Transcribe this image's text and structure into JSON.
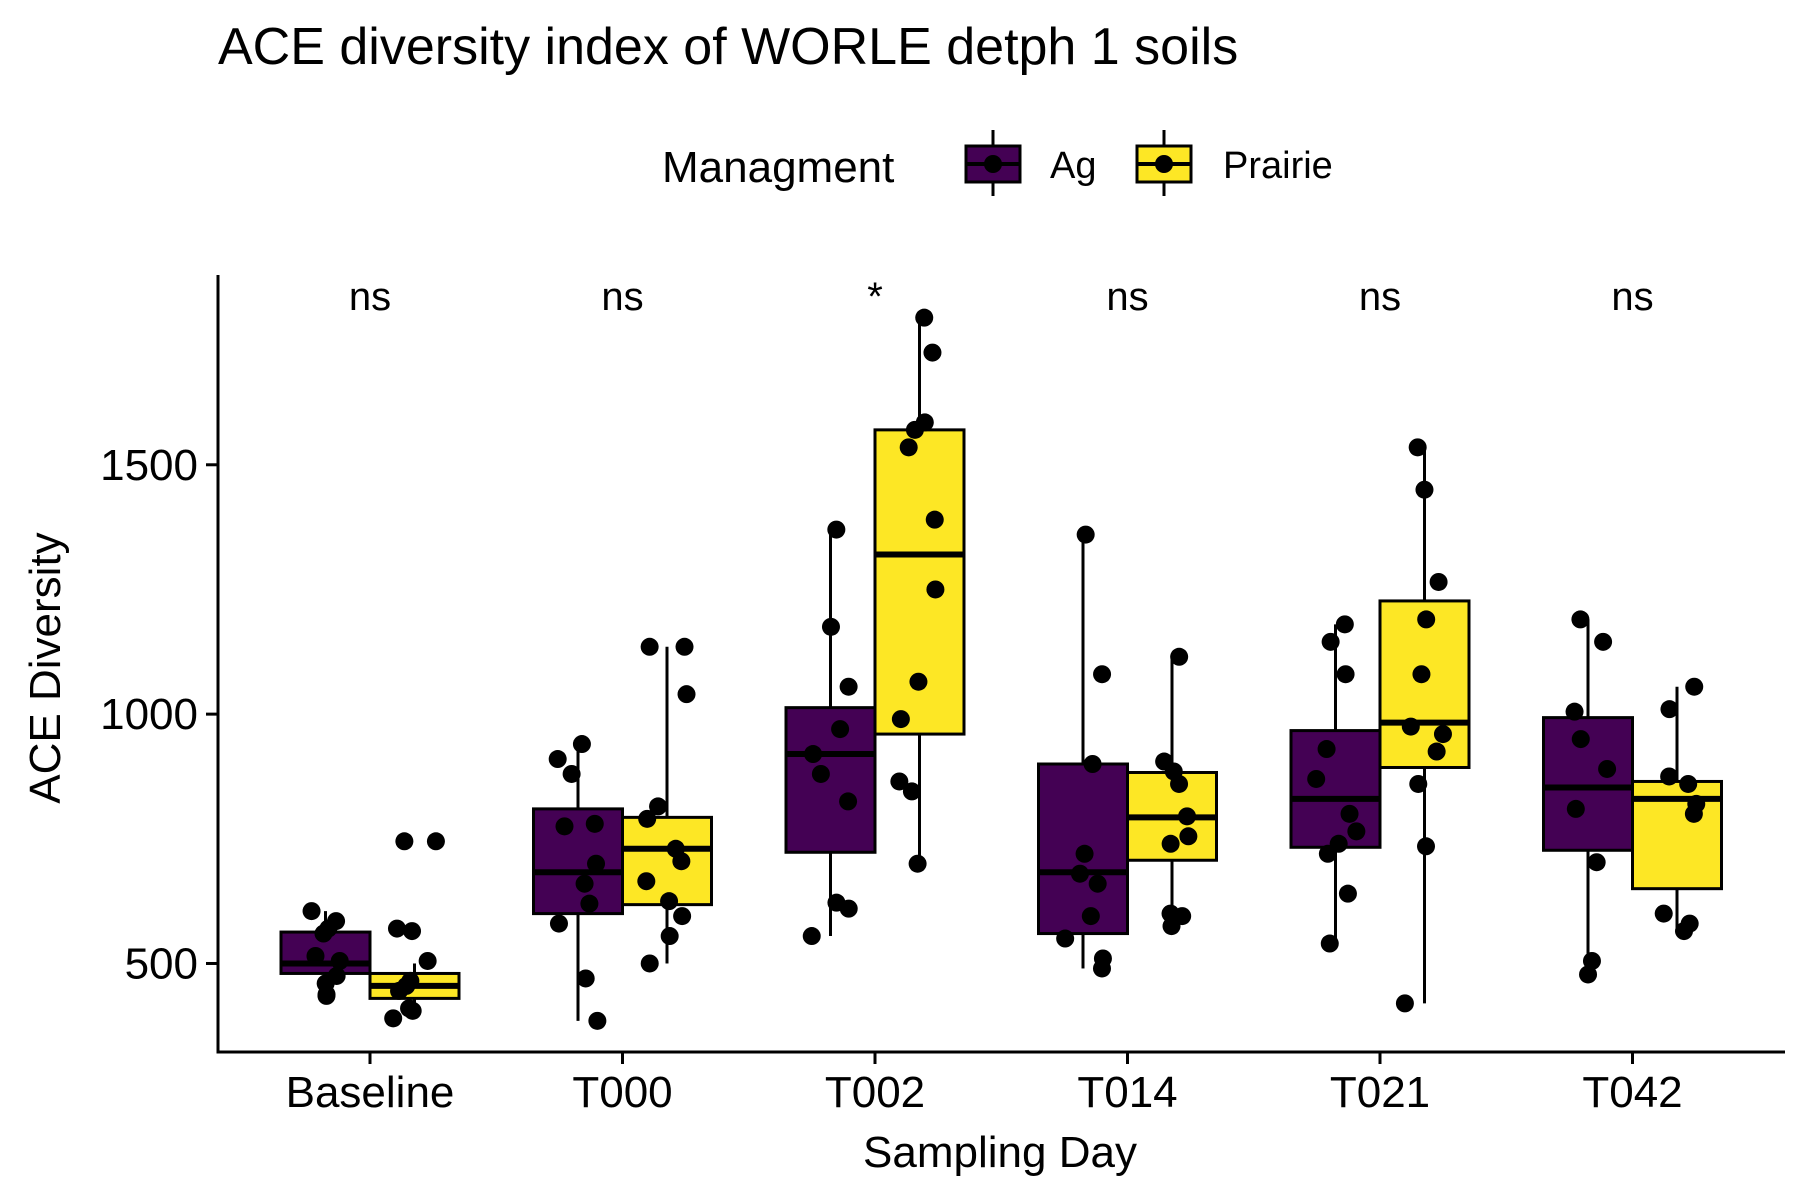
{
  "chart_data": {
    "type": "boxplot",
    "title": "ACE diversity index of WORLE detph 1 soils",
    "xlabel": "Sampling Day",
    "ylabel": "ACE Diversity",
    "ylim": [
      320,
      1850
    ],
    "yticks": [
      500,
      1000,
      1500
    ],
    "grid": false,
    "legend": {
      "title": "Managment",
      "position": "top",
      "entries": [
        "Ag",
        "Prairie"
      ]
    },
    "colors": {
      "Ag": "#440154",
      "Prairie": "#FDE725"
    },
    "categories": [
      "Baseline",
      "T000",
      "T002",
      "T014",
      "T021",
      "T042"
    ],
    "significance": [
      "ns",
      "ns",
      "*",
      "ns",
      "ns",
      "ns"
    ],
    "series": [
      {
        "name": "Ag",
        "boxes": [
          {
            "lower_whisker": 435,
            "q1": 480,
            "median": 500,
            "q3": 563,
            "upper_whisker": 605,
            "points": [
              605,
              585,
              570,
              560,
              515,
              505,
              475,
              460,
              438,
              435
            ]
          },
          {
            "lower_whisker": 385,
            "q1": 600,
            "median": 683,
            "q3": 810,
            "upper_whisker": 940,
            "points": [
              940,
              910,
              880,
              780,
              775,
              700,
              660,
              620,
              580,
              470,
              385
            ]
          },
          {
            "lower_whisker": 555,
            "q1": 723,
            "median": 920,
            "q3": 1013,
            "upper_whisker": 1370,
            "points": [
              1370,
              1175,
              1055,
              970,
              920,
              880,
              825,
              622,
              610,
              555
            ]
          },
          {
            "lower_whisker": 490,
            "q1": 560,
            "median": 683,
            "q3": 900,
            "upper_whisker": 1360,
            "points": [
              1360,
              1080,
              900,
              720,
              680,
              660,
              595,
              550,
              510,
              490
            ]
          },
          {
            "lower_whisker": 540,
            "q1": 733,
            "median": 830,
            "q3": 967,
            "upper_whisker": 1180,
            "points": [
              1180,
              1145,
              1080,
              930,
              870,
              800,
              765,
              740,
              720,
              640,
              540
            ]
          },
          {
            "lower_whisker": 478,
            "q1": 727,
            "median": 853,
            "q3": 993,
            "upper_whisker": 1190,
            "points": [
              1190,
              1145,
              1005,
              950,
              890,
              810,
              703,
              505,
              478
            ]
          }
        ]
      },
      {
        "name": "Prairie",
        "boxes": [
          {
            "lower_whisker": 390,
            "q1": 430,
            "median": 455,
            "q3": 480,
            "upper_whisker": 500,
            "points": [
              745,
              745,
              570,
              565,
              505,
              465,
              455,
              445,
              410,
              405,
              390
            ]
          },
          {
            "lower_whisker": 500,
            "q1": 618,
            "median": 730,
            "q3": 793,
            "upper_whisker": 1135,
            "points": [
              1135,
              1135,
              1040,
              815,
              790,
              730,
              705,
              665,
              625,
              595,
              555,
              500
            ]
          },
          {
            "lower_whisker": 700,
            "q1": 960,
            "median": 1320,
            "q3": 1570,
            "upper_whisker": 1795,
            "points": [
              1795,
              1725,
              1585,
              1570,
              1535,
              1390,
              1250,
              1065,
              990,
              865,
              845,
              700
            ]
          },
          {
            "lower_whisker": 575,
            "q1": 707,
            "median": 793,
            "q3": 883,
            "upper_whisker": 1115,
            "points": [
              1115,
              905,
              885,
              860,
              795,
              755,
              740,
              600,
              595,
              575
            ]
          },
          {
            "lower_whisker": 420,
            "q1": 893,
            "median": 983,
            "q3": 1227,
            "upper_whisker": 1535,
            "points": [
              1535,
              1450,
              1265,
              1190,
              1080,
              975,
              960,
              925,
              860,
              735,
              420
            ]
          },
          {
            "lower_whisker": 565,
            "q1": 650,
            "median": 830,
            "q3": 865,
            "upper_whisker": 1055,
            "points": [
              1055,
              1010,
              875,
              860,
              820,
              800,
              600,
              580,
              565
            ]
          }
        ]
      }
    ]
  }
}
